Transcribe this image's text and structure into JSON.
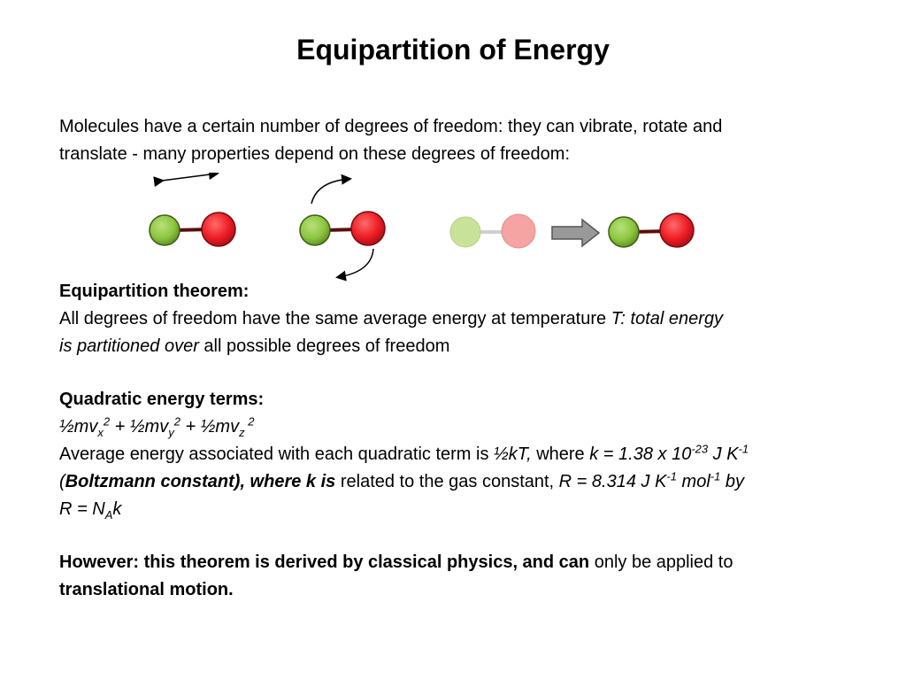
{
  "slide": {
    "title": "Equipartition of Energy",
    "intro": {
      "line1": "Molecules have a certain number of degrees of freedom: they can vibrate, rotate and",
      "line2": "translate - many properties depend on these degrees of freedom:"
    },
    "theorem": {
      "heading": "Equipartition theorem:",
      "line1_plain": "All degrees of freedom have the same average energy at temperature ",
      "line1_italic": "T: total energy",
      "line2_italic": "is partitioned over",
      "line2_plain": " all possible degrees of freedom"
    },
    "quadratic": {
      "heading": "Quadratic energy terms:",
      "formula": {
        "t1": "½mv",
        "s1": "x",
        "p1": "2",
        "plus1": " + ",
        "t2": "½mv",
        "s2": "y",
        "p2": "2",
        "plus2": " + ",
        "t3": "½mv",
        "s3": "z",
        "p3": " 2"
      },
      "avg": {
        "a": "Average energy associated with each quadratic term is ",
        "b": "½kT,",
        "c": " where ",
        "d": "k = 1.38 x 10",
        "e": "-23",
        "f": " J K",
        "g": "-1"
      },
      "boltz": {
        "a": "(",
        "b": "Boltzmann constant), where k is",
        "c": " related to the gas constant, ",
        "d": "R = 8.314 J K",
        "e": "-1",
        "f": " mol",
        "g": "-1",
        "h": " by"
      },
      "rel": {
        "a": "R = N",
        "b": "A",
        "c": "k"
      }
    },
    "however": {
      "bold1": "However: this theorem is derived by classical physics, and can",
      "plain": " only be applied to",
      "bold2": "translational motion."
    }
  },
  "colors": {
    "green_atom": "#8cc63f",
    "red_atom": "#ed1c24",
    "faded_green": "#c8e29a",
    "faded_red": "#f5a3a3",
    "bond": "#5a0e0e",
    "arrow_fill": "#999999"
  }
}
